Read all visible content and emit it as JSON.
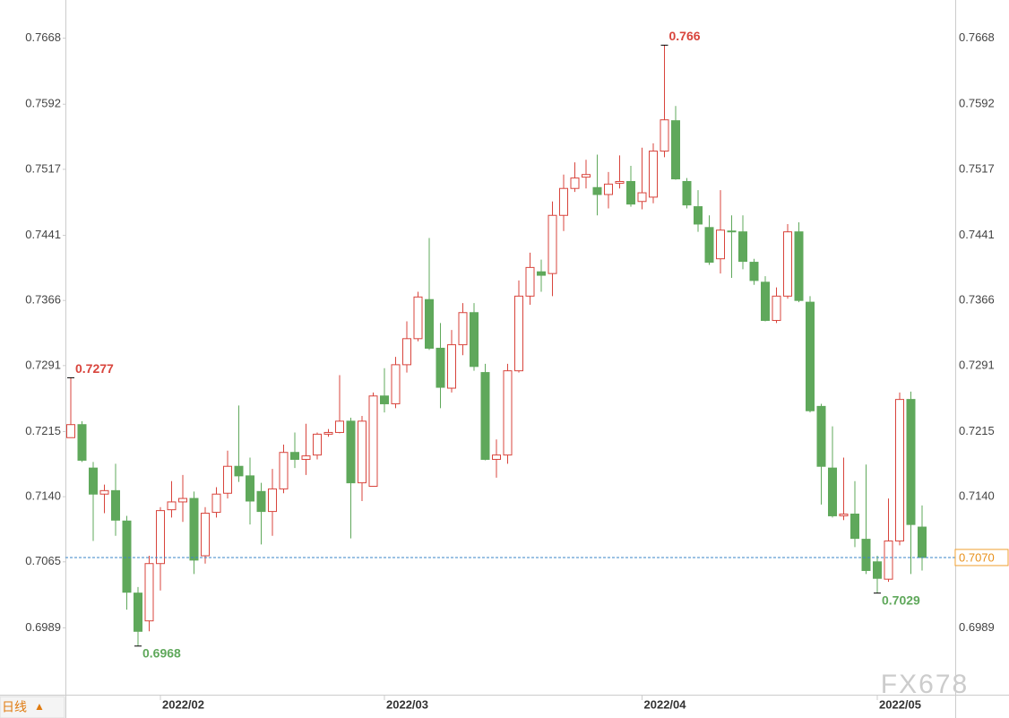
{
  "chart_data": {
    "type": "candlestick",
    "categories": [
      null,
      null,
      null,
      null,
      null,
      null,
      null,
      null,
      "2022/02",
      null,
      null,
      null,
      null,
      null,
      null,
      null,
      null,
      null,
      null,
      null,
      null,
      null,
      null,
      null,
      null,
      null,
      null,
      null,
      "2022/03",
      null,
      null,
      null,
      null,
      null,
      null,
      null,
      null,
      null,
      null,
      null,
      null,
      null,
      null,
      null,
      null,
      null,
      null,
      null,
      null,
      null,
      null,
      "2022/04",
      null,
      null,
      null,
      null,
      null,
      null,
      null,
      null,
      null,
      null,
      null,
      null,
      null,
      null,
      null,
      null,
      null,
      null,
      null,
      null,
      "2022/05",
      null,
      null,
      null,
      null
    ],
    "open": [
      0.7208,
      0.7223,
      0.7173,
      0.7143,
      0.7147,
      0.7112,
      0.7029,
      0.6997,
      0.7063,
      0.7125,
      0.7134,
      0.7138,
      0.7072,
      0.7122,
      0.7144,
      0.7175,
      0.7164,
      0.7146,
      0.7123,
      0.7149,
      0.7191,
      0.7183,
      0.7188,
      0.7212,
      0.7214,
      0.7227,
      0.7156,
      0.7152,
      0.7256,
      0.7247,
      0.7292,
      0.7322,
      0.7367,
      0.7311,
      0.7265,
      0.7315,
      0.7352,
      0.7283,
      0.7183,
      0.7188,
      0.7285,
      0.7371,
      0.7399,
      0.7397,
      0.7464,
      0.7495,
      0.7508,
      0.7496,
      0.7488,
      0.7501,
      0.7503,
      0.748,
      0.7485,
      0.7538,
      0.7573,
      0.7503,
      0.7474,
      0.745,
      0.7414,
      0.7446,
      0.7445,
      0.741,
      0.7387,
      0.7343,
      0.7371,
      0.7445,
      0.7364,
      0.7244,
      0.7173,
      0.7118,
      0.712,
      0.7091,
      0.7065,
      0.7045,
      0.7089,
      0.7252,
      0.7105
    ],
    "high": [
      0.7277,
      0.7227,
      0.718,
      0.7154,
      0.7178,
      0.7118,
      0.7036,
      0.7072,
      0.7128,
      0.7158,
      0.7165,
      0.7146,
      0.7128,
      0.7151,
      0.7193,
      0.7245,
      0.7185,
      0.7156,
      0.7172,
      0.72,
      0.7214,
      0.7224,
      0.7214,
      0.7218,
      0.728,
      0.7231,
      0.7233,
      0.726,
      0.7288,
      0.7301,
      0.7342,
      0.7376,
      0.7438,
      0.734,
      0.7332,
      0.7363,
      0.7363,
      0.7293,
      0.7206,
      0.7293,
      0.7389,
      0.7421,
      0.7413,
      0.748,
      0.7511,
      0.7525,
      0.7528,
      0.7534,
      0.7514,
      0.7533,
      0.7521,
      0.7542,
      0.7547,
      0.766,
      0.759,
      0.7507,
      0.7493,
      0.7464,
      0.7493,
      0.7464,
      0.7464,
      0.7414,
      0.7394,
      0.7381,
      0.7454,
      0.7456,
      0.7371,
      0.7247,
      0.7221,
      0.7185,
      0.7158,
      0.7177,
      0.7072,
      0.7138,
      0.726,
      0.7261,
      0.713
    ],
    "low": [
      0.7208,
      0.718,
      0.7089,
      0.7121,
      0.7095,
      0.701,
      0.6968,
      0.6985,
      0.7032,
      0.7116,
      0.7111,
      0.7051,
      0.7063,
      0.7116,
      0.7138,
      0.7157,
      0.7108,
      0.7085,
      0.7095,
      0.7144,
      0.7173,
      0.7165,
      0.7183,
      0.7209,
      0.7213,
      0.7092,
      0.7135,
      0.7152,
      0.7237,
      0.7242,
      0.7283,
      0.7319,
      0.7309,
      0.7242,
      0.726,
      0.7303,
      0.7285,
      0.7182,
      0.7162,
      0.7178,
      0.7283,
      0.7361,
      0.7376,
      0.7371,
      0.7446,
      0.7491,
      0.7495,
      0.7464,
      0.7472,
      0.7495,
      0.7474,
      0.7471,
      0.7478,
      0.7531,
      0.7505,
      0.7472,
      0.7445,
      0.7407,
      0.7397,
      0.7392,
      0.7402,
      0.7384,
      0.7342,
      0.734,
      0.7368,
      0.7364,
      0.7237,
      0.7131,
      0.7116,
      0.7113,
      0.7082,
      0.7051,
      0.7029,
      0.7042,
      0.7084,
      0.7051,
      0.7055
    ],
    "close": [
      0.7223,
      0.7182,
      0.7143,
      0.7147,
      0.7113,
      0.703,
      0.6985,
      0.7063,
      0.7124,
      0.7134,
      0.7138,
      0.7067,
      0.7121,
      0.7143,
      0.7175,
      0.7164,
      0.7135,
      0.7123,
      0.7149,
      0.7191,
      0.7183,
      0.7187,
      0.7212,
      0.7214,
      0.7227,
      0.7156,
      0.7227,
      0.7256,
      0.7247,
      0.7292,
      0.7322,
      0.737,
      0.7311,
      0.7266,
      0.7315,
      0.7352,
      0.729,
      0.7183,
      0.7188,
      0.7285,
      0.7371,
      0.7404,
      0.7395,
      0.7464,
      0.7495,
      0.7507,
      0.7511,
      0.7488,
      0.75,
      0.7503,
      0.7477,
      0.749,
      0.7538,
      0.7574,
      0.7506,
      0.7476,
      0.7454,
      0.741,
      0.7447,
      0.7445,
      0.7411,
      0.7389,
      0.7343,
      0.7371,
      0.7445,
      0.7366,
      0.7239,
      0.7175,
      0.7118,
      0.712,
      0.7092,
      0.7055,
      0.7046,
      0.7089,
      0.7252,
      0.7108,
      0.707
    ],
    "up_color": "#d8443c",
    "down_color": "#5fa85b",
    "ylim": [
      0.6912,
      0.7712
    ],
    "yticks": [
      0.6989,
      0.7065,
      {
        "value": 0.714,
        "label": "0.7140"
      },
      0.7215,
      0.7291,
      0.7366,
      0.7441,
      0.7517,
      0.7592,
      0.7668
    ],
    "current_price": {
      "value": 0.707,
      "label": "0.7070"
    },
    "grid": false
  },
  "ui": {
    "period_button": "日线",
    "period_arrow": "▲",
    "watermark": "FX678"
  }
}
